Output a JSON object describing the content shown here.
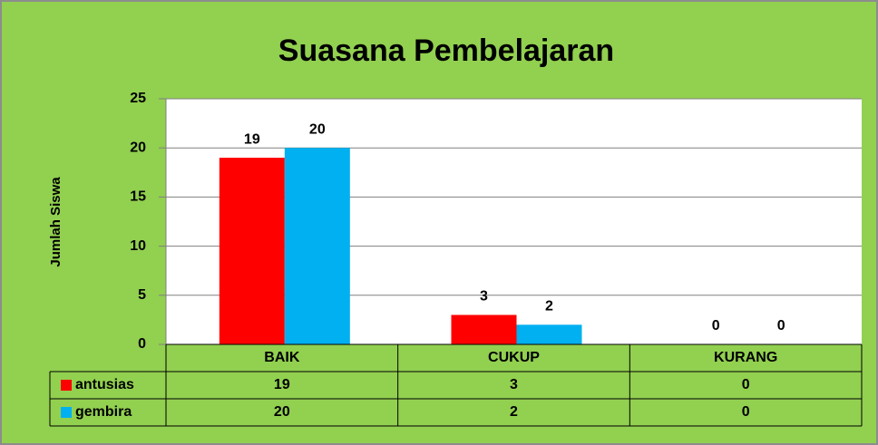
{
  "chart_data": {
    "type": "bar",
    "title": "Suasana Pembelajaran",
    "y_label": "Jumlah Siswa",
    "categories": [
      "BAIK",
      "CUKUP",
      "KURANG"
    ],
    "series": [
      {
        "name": "antusias",
        "color": "#ff0000",
        "values": [
          19,
          3,
          0
        ]
      },
      {
        "name": "gembira",
        "color": "#00b0f0",
        "values": [
          20,
          2,
          0
        ]
      }
    ],
    "ylim": [
      0,
      25
    ],
    "yticks": [
      0,
      5,
      10,
      15,
      20,
      25
    ],
    "grid": true,
    "data_table": true
  }
}
